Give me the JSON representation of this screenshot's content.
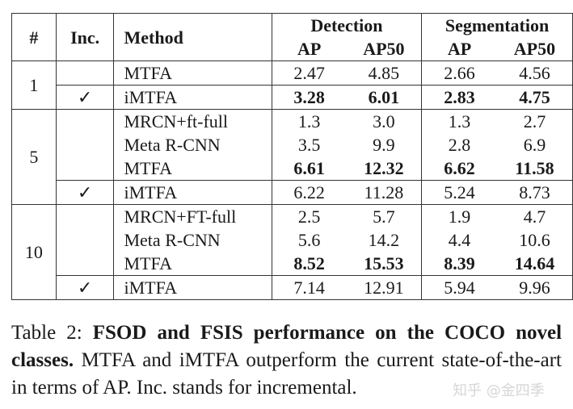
{
  "table": {
    "headers": {
      "num": "#",
      "inc": "Inc.",
      "method": "Method",
      "detection": "Detection",
      "segmentation": "Segmentation",
      "ap": "AP",
      "ap50": "AP50"
    },
    "check_mark": "✓",
    "groups": [
      {
        "shots": "1",
        "rows": [
          {
            "inc": "",
            "method": "MTFA",
            "values": [
              "2.47",
              "4.85",
              "2.66",
              "4.56"
            ],
            "bold": false
          },
          {
            "inc": "✓",
            "method": "iMTFA",
            "values": [
              "3.28",
              "6.01",
              "2.83",
              "4.75"
            ],
            "bold": true
          }
        ]
      },
      {
        "shots": "5",
        "rows": [
          {
            "inc": "",
            "method": "MRCN+ft-full",
            "values": [
              "1.3",
              "3.0",
              "1.3",
              "2.7"
            ],
            "bold": false
          },
          {
            "inc": "",
            "method": "Meta R-CNN",
            "values": [
              "3.5",
              "9.9",
              "2.8",
              "6.9"
            ],
            "bold": false
          },
          {
            "inc": "",
            "method": "MTFA",
            "values": [
              "6.61",
              "12.32",
              "6.62",
              "11.58"
            ],
            "bold": true
          },
          {
            "inc": "✓",
            "method": "iMTFA",
            "values": [
              "6.22",
              "11.28",
              "5.24",
              "8.73"
            ],
            "bold": false
          }
        ]
      },
      {
        "shots": "10",
        "rows": [
          {
            "inc": "",
            "method": "MRCN+FT-full",
            "values": [
              "2.5",
              "5.7",
              "1.9",
              "4.7"
            ],
            "bold": false
          },
          {
            "inc": "",
            "method": "Meta R-CNN",
            "values": [
              "5.6",
              "14.2",
              "4.4",
              "10.6"
            ],
            "bold": false
          },
          {
            "inc": "",
            "method": "MTFA",
            "values": [
              "8.52",
              "15.53",
              "8.39",
              "14.64"
            ],
            "bold": true
          },
          {
            "inc": "✓",
            "method": "iMTFA",
            "values": [
              "7.14",
              "12.91",
              "5.94",
              "9.96"
            ],
            "bold": false
          }
        ]
      }
    ]
  },
  "caption": {
    "label": "Table 2:",
    "bold_text": "FSOD and FSIS performance on the COCO novel classes.",
    "text": "MTFA and iMTFA outperform the current state-of-the-art in terms of AP. Inc. stands for incremental."
  },
  "watermark": "知乎 @金四季"
}
